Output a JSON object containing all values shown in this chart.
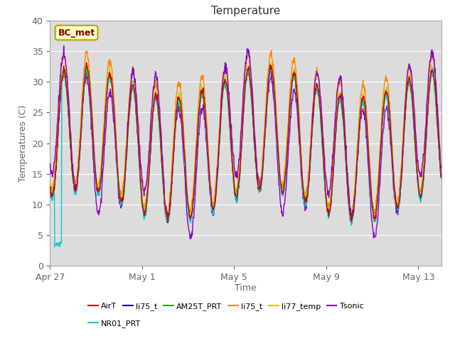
{
  "title": "Temperature",
  "xlabel": "Time",
  "ylabel": "Temperatures (C)",
  "ylim": [
    0,
    40
  ],
  "yticks": [
    0,
    5,
    10,
    15,
    20,
    25,
    30,
    35,
    40
  ],
  "fig_bg": "#ffffff",
  "plot_bg": "#dcdcdc",
  "annotation_text": "BC_met",
  "annotation_color": "#8b0000",
  "annotation_bg": "#ffffcc",
  "annotation_edge": "#aaaa00",
  "legend_labels": [
    "AirT",
    "li75_t",
    "AM25T_PRT",
    "li75_t",
    "li77_temp",
    "Tsonic",
    "NR01_PRT"
  ],
  "legend_colors": [
    "#cc0000",
    "#000099",
    "#00bb00",
    "#ff8800",
    "#cccc00",
    "#8800cc",
    "#00cccc"
  ],
  "date_labels": [
    "Apr 27",
    "May 1",
    "May 5",
    "May 9",
    "May 13"
  ],
  "date_positions": [
    0,
    4,
    8,
    12,
    16
  ],
  "xlim": [
    0,
    17
  ],
  "grid_color": "#ffffff",
  "tick_color": "#666666",
  "spine_color": "#aaaaaa"
}
